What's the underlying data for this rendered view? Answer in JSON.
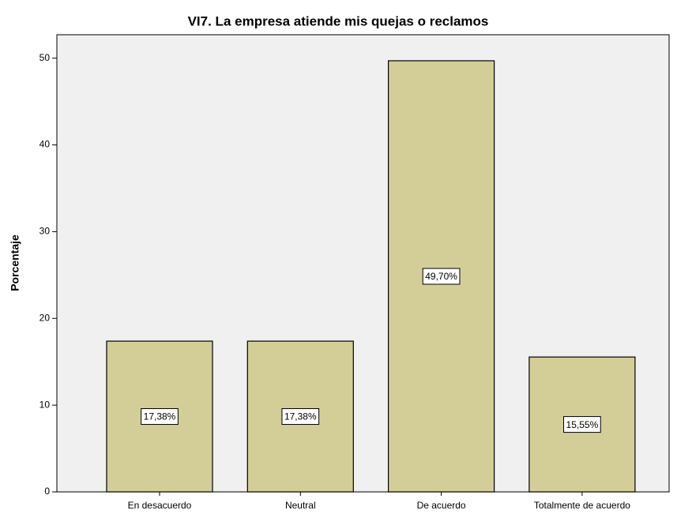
{
  "chart_data": {
    "type": "bar",
    "title": "VI7. La empresa atiende mis quejas o reclamos",
    "y_label": "Porcentaje",
    "categories": [
      "En desacuerdo",
      "Neutral",
      "De acuerdo",
      "Totalmente de acuerdo"
    ],
    "values": [
      17.38,
      17.38,
      49.7,
      15.55
    ],
    "value_labels": [
      "17,38%",
      "17,38%",
      "49,70%",
      "15,55%"
    ],
    "color": "#d3ce97",
    "ylim": [
      0,
      52.7
    ],
    "yticks": [
      0,
      10,
      20,
      30,
      40,
      50
    ],
    "grid": false
  }
}
